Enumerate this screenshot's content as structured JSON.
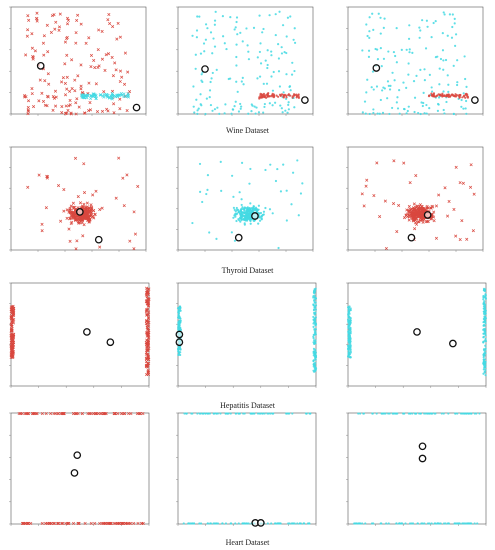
{
  "colors": {
    "red": "#d9483f",
    "cyan": "#44d9e3",
    "center": "#111111",
    "axis": "#555555",
    "tick": "#888888"
  },
  "captions": [
    "Wine Dataset",
    "Thyroid Dataset",
    "Hepatitis Dataset",
    "Heart Dataset"
  ],
  "chart_data": [
    {
      "type": "scatter",
      "dataset": "Wine Dataset",
      "panels": [
        {
          "xlim": [
            0,
            10
          ],
          "ylim": [
            0,
            10
          ],
          "clusters": [
            "red-main",
            "cyan-band"
          ],
          "centers": [
            [
              2.2,
              4.5
            ],
            [
              9.3,
              0.6
            ]
          ]
        },
        {
          "xlim": [
            0,
            10
          ],
          "ylim": [
            0,
            10
          ],
          "clusters": [
            "cyan-main",
            "red-band"
          ],
          "centers": [
            [
              2.0,
              4.2
            ],
            [
              9.4,
              1.3
            ]
          ]
        },
        {
          "xlim": [
            0,
            10
          ],
          "ylim": [
            0,
            10
          ],
          "clusters": [
            "cyan-main",
            "red-band"
          ],
          "centers": [
            [
              2.1,
              4.3
            ],
            [
              9.4,
              1.3
            ]
          ]
        }
      ]
    },
    {
      "type": "scatter",
      "dataset": "Thyroid Dataset",
      "panels": [
        {
          "xlim": [
            0,
            10
          ],
          "ylim": [
            0,
            10
          ],
          "clusters": [
            "red-blob"
          ],
          "centers": [
            [
              5.1,
              3.7
            ],
            [
              6.5,
              1.0
            ]
          ]
        },
        {
          "xlim": [
            0,
            10
          ],
          "ylim": [
            0,
            10
          ],
          "clusters": [
            "cyan-blob"
          ],
          "centers": [
            [
              5.7,
              3.3
            ],
            [
              4.5,
              1.2
            ]
          ]
        },
        {
          "xlim": [
            0,
            10
          ],
          "ylim": [
            0,
            10
          ],
          "clusters": [
            "red-blob"
          ],
          "centers": [
            [
              5.9,
              3.4
            ],
            [
              4.7,
              1.2
            ]
          ]
        }
      ]
    },
    {
      "type": "scatter",
      "dataset": "Hepatitis Dataset",
      "panels": [
        {
          "xlim": [
            1,
            2
          ],
          "ylim": [
            0,
            80
          ],
          "clusters": [
            "red-edges"
          ],
          "centers": [
            [
              1.55,
              42
            ],
            [
              1.72,
              34
            ]
          ]
        },
        {
          "xlim": [
            1,
            2
          ],
          "ylim": [
            0,
            80
          ],
          "clusters": [
            "cyan-edges"
          ],
          "centers": [
            [
              1.01,
              40
            ],
            [
              1.01,
              34
            ]
          ]
        },
        {
          "xlim": [
            1,
            2
          ],
          "ylim": [
            0,
            80
          ],
          "clusters": [
            "cyan-edges"
          ],
          "centers": [
            [
              1.5,
              42
            ],
            [
              1.76,
              33
            ]
          ]
        }
      ]
    },
    {
      "type": "scatter",
      "dataset": "Heart Dataset",
      "panels": [
        {
          "xlim": [
            30,
            80
          ],
          "ylim": [
            0,
            1
          ],
          "clusters": [
            "red-rows"
          ],
          "centers": [
            [
              54,
              0.62
            ],
            [
              53,
              0.46
            ]
          ]
        },
        {
          "xlim": [
            30,
            80
          ],
          "ylim": [
            0,
            1
          ],
          "clusters": [
            "cyan-rows"
          ],
          "centers": [
            [
              58,
              0.01
            ],
            [
              60,
              0.01
            ]
          ]
        },
        {
          "xlim": [
            30,
            80
          ],
          "ylim": [
            0,
            1
          ],
          "clusters": [
            "cyan-rows"
          ],
          "centers": [
            [
              57,
              0.7
            ],
            [
              57,
              0.59
            ]
          ]
        }
      ]
    }
  ]
}
